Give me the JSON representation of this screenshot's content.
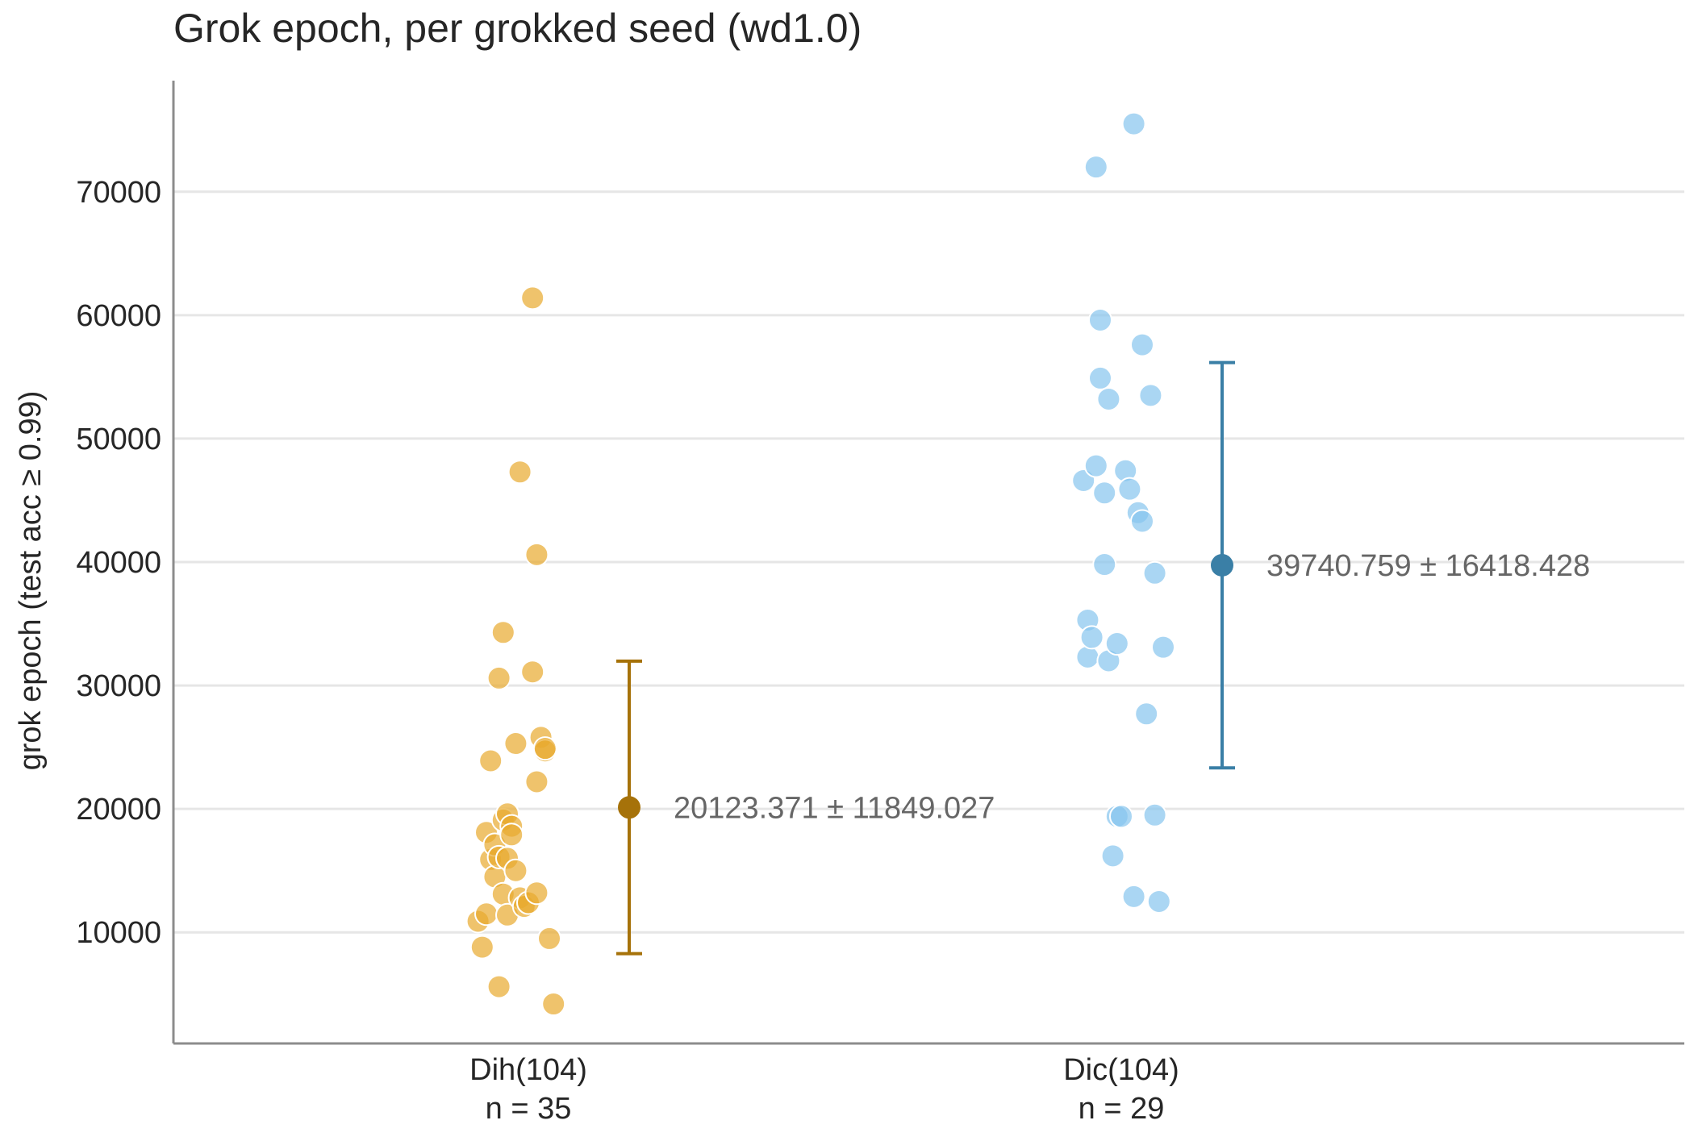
{
  "chart_data": {
    "type": "scatter",
    "title": "Grok epoch, per grokked seed (wd1.0)",
    "xlabel": "",
    "ylabel": "grok epoch (test acc ≥ 0.99)",
    "ylim": [
      1000,
      79000
    ],
    "yticks": [
      10000,
      20000,
      30000,
      40000,
      50000,
      60000,
      70000
    ],
    "grid": "horizontal",
    "categories": [
      "Dih(104)",
      "Dic(104)"
    ],
    "groups": [
      {
        "category": "Dih(104)",
        "n_label": "n = 35",
        "point_color": "#E8AA2E",
        "summary_color": "#A6720A",
        "mean": 20123.371,
        "sd": 11849.027,
        "annotation": "20123.371 ± 11849.027",
        "points": [
          {
            "jitter": -0.12,
            "y": 10900
          },
          {
            "jitter": -0.11,
            "y": 8800
          },
          {
            "jitter": -0.1,
            "y": 18100
          },
          {
            "jitter": -0.1,
            "y": 11500
          },
          {
            "jitter": -0.09,
            "y": 23900
          },
          {
            "jitter": -0.09,
            "y": 15900
          },
          {
            "jitter": -0.08,
            "y": 17100
          },
          {
            "jitter": -0.08,
            "y": 14500
          },
          {
            "jitter": -0.07,
            "y": 30600
          },
          {
            "jitter": -0.07,
            "y": 5600
          },
          {
            "jitter": -0.07,
            "y": 16100
          },
          {
            "jitter": -0.06,
            "y": 13100
          },
          {
            "jitter": -0.06,
            "y": 19100
          },
          {
            "jitter": -0.06,
            "y": 34300
          },
          {
            "jitter": -0.05,
            "y": 16000
          },
          {
            "jitter": -0.05,
            "y": 19600
          },
          {
            "jitter": -0.05,
            "y": 11400
          },
          {
            "jitter": -0.04,
            "y": 18600
          },
          {
            "jitter": -0.04,
            "y": 17900
          },
          {
            "jitter": -0.03,
            "y": 15000
          },
          {
            "jitter": -0.03,
            "y": 25300
          },
          {
            "jitter": -0.02,
            "y": 47300
          },
          {
            "jitter": -0.02,
            "y": 12800
          },
          {
            "jitter": -0.01,
            "y": 12100
          },
          {
            "jitter": 0.0,
            "y": 12400
          },
          {
            "jitter": 0.01,
            "y": 31100
          },
          {
            "jitter": 0.01,
            "y": 61400
          },
          {
            "jitter": 0.02,
            "y": 13200
          },
          {
            "jitter": 0.02,
            "y": 22200
          },
          {
            "jitter": 0.02,
            "y": 40600
          },
          {
            "jitter": 0.03,
            "y": 25800
          },
          {
            "jitter": 0.04,
            "y": 24700
          },
          {
            "jitter": 0.04,
            "y": 24900
          },
          {
            "jitter": 0.05,
            "y": 9500
          },
          {
            "jitter": 0.06,
            "y": 4200
          }
        ]
      },
      {
        "category": "Dic(104)",
        "n_label": "n = 29",
        "point_color": "#86C5EE",
        "summary_color": "#3A7FA6",
        "mean": 39740.759,
        "sd": 16418.428,
        "annotation": "39740.759 ± 16418.428",
        "points": [
          {
            "jitter": -0.09,
            "y": 46600
          },
          {
            "jitter": -0.08,
            "y": 35300
          },
          {
            "jitter": -0.08,
            "y": 32300
          },
          {
            "jitter": -0.07,
            "y": 33900
          },
          {
            "jitter": -0.06,
            "y": 72000
          },
          {
            "jitter": -0.06,
            "y": 47800
          },
          {
            "jitter": -0.05,
            "y": 54900
          },
          {
            "jitter": -0.05,
            "y": 59600
          },
          {
            "jitter": -0.04,
            "y": 39800
          },
          {
            "jitter": -0.04,
            "y": 45600
          },
          {
            "jitter": -0.03,
            "y": 32000
          },
          {
            "jitter": -0.03,
            "y": 53200
          },
          {
            "jitter": -0.02,
            "y": 16200
          },
          {
            "jitter": -0.01,
            "y": 19400
          },
          {
            "jitter": -0.01,
            "y": 33400
          },
          {
            "jitter": 0.0,
            "y": 19400
          },
          {
            "jitter": 0.01,
            "y": 47400
          },
          {
            "jitter": 0.02,
            "y": 45900
          },
          {
            "jitter": 0.03,
            "y": 12900
          },
          {
            "jitter": 0.03,
            "y": 75500
          },
          {
            "jitter": 0.04,
            "y": 44000
          },
          {
            "jitter": 0.05,
            "y": 43300
          },
          {
            "jitter": 0.05,
            "y": 57600
          },
          {
            "jitter": 0.06,
            "y": 27700
          },
          {
            "jitter": 0.07,
            "y": 53500
          },
          {
            "jitter": 0.08,
            "y": 39100
          },
          {
            "jitter": 0.08,
            "y": 19500
          },
          {
            "jitter": 0.09,
            "y": 12500
          },
          {
            "jitter": 0.1,
            "y": 33100
          }
        ]
      }
    ]
  }
}
